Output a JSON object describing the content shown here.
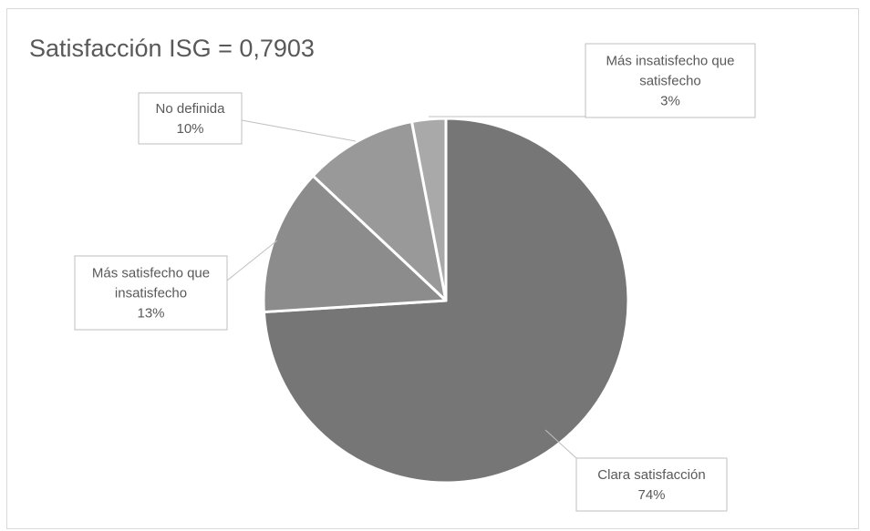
{
  "chart_data": {
    "type": "pie",
    "title": "Satisfacción ISG = 0,7903",
    "slices": [
      {
        "label_lines": [
          "Clara satisfacción"
        ],
        "value": 74,
        "value_label": "74%",
        "color": "#767676",
        "label_pos": "bottom-right"
      },
      {
        "label_lines": [
          "Más satisfecho que",
          "insatisfecho"
        ],
        "value": 13,
        "value_label": "13%",
        "color": "#8c8c8c",
        "label_pos": "left"
      },
      {
        "label_lines": [
          "No definida"
        ],
        "value": 10,
        "value_label": "10%",
        "color": "#999999",
        "label_pos": "top-left"
      },
      {
        "label_lines": [
          "Más insatisfecho que",
          "satisfecho"
        ],
        "value": 3,
        "value_label": "3%",
        "color": "#a9a9a9",
        "label_pos": "top-right"
      }
    ],
    "legend": "none",
    "start_angle": "12 o'clock",
    "direction": "clockwise"
  }
}
